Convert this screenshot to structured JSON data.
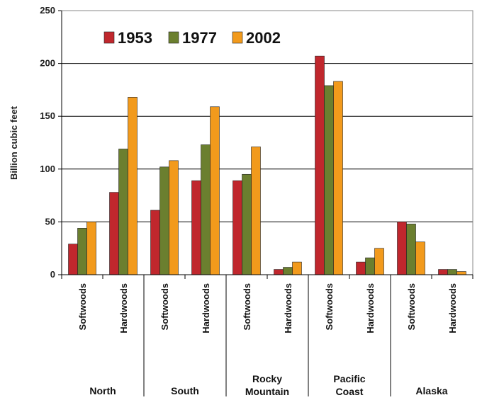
{
  "chart_data": {
    "type": "bar",
    "ylabel": "Billion cubic feet",
    "xlabel": "",
    "ylim": [
      0,
      250
    ],
    "yticks": [
      0,
      50,
      100,
      150,
      200,
      250
    ],
    "grid": true,
    "legend_position": "top-left",
    "colors": {
      "1953": "#c0272d",
      "1977": "#6b7f2f",
      "2002": "#f29a1c"
    },
    "categories": [
      "Softwoods",
      "Hardwoods",
      "Softwoods",
      "Hardwoods",
      "Softwoods",
      "Hardwoods",
      "Softwoods",
      "Hardwoods",
      "Softwoods",
      "Hardwoods"
    ],
    "groups": [
      {
        "label": [
          "North"
        ],
        "span": 2
      },
      {
        "label": [
          "South"
        ],
        "span": 2
      },
      {
        "label": [
          "Rocky",
          "Mountain"
        ],
        "span": 2
      },
      {
        "label": [
          "Pacific",
          "Coast"
        ],
        "span": 2
      },
      {
        "label": [
          "Alaska"
        ],
        "span": 2
      }
    ],
    "series": [
      {
        "name": "1953",
        "values": [
          29,
          78,
          61,
          89,
          89,
          5,
          207,
          12,
          50,
          5
        ]
      },
      {
        "name": "1977",
        "values": [
          44,
          119,
          102,
          123,
          95,
          7,
          179,
          16,
          48,
          5
        ]
      },
      {
        "name": "2002",
        "values": [
          50,
          168,
          108,
          159,
          121,
          12,
          183,
          25,
          31,
          3
        ]
      }
    ]
  }
}
